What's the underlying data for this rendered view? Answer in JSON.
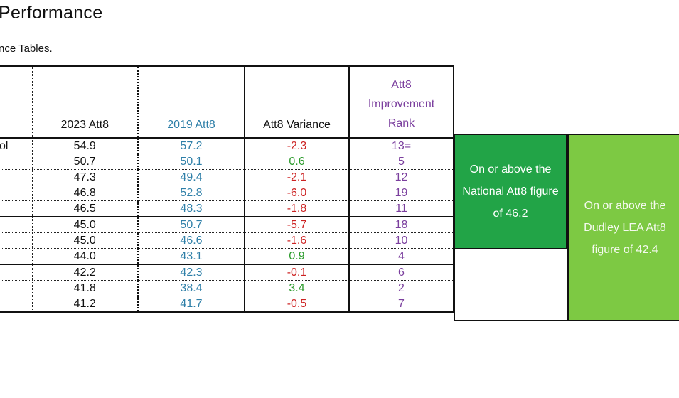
{
  "page": {
    "title": "Performance",
    "subtitle": "nce Tables."
  },
  "table": {
    "headers": {
      "name": "",
      "att8_2023": "2023 Att8",
      "att8_2019": "2019 Att8",
      "variance": "Att8 Variance",
      "rank": "Att8 Improvement Rank"
    },
    "rows": [
      {
        "name": "ol",
        "att8_2023": "54.9",
        "att8_2019": "57.2",
        "variance": "-2.3",
        "rank": "13="
      },
      {
        "name": "",
        "att8_2023": "50.7",
        "att8_2019": "50.1",
        "variance": "0.6",
        "rank": "5"
      },
      {
        "name": "",
        "att8_2023": "47.3",
        "att8_2019": "49.4",
        "variance": "-2.1",
        "rank": "12"
      },
      {
        "name": "",
        "att8_2023": "46.8",
        "att8_2019": "52.8",
        "variance": "-6.0",
        "rank": "19"
      },
      {
        "name": "",
        "att8_2023": "46.5",
        "att8_2019": "48.3",
        "variance": "-1.8",
        "rank": "11"
      },
      {
        "name": "",
        "att8_2023": "45.0",
        "att8_2019": "50.7",
        "variance": "-5.7",
        "rank": "18"
      },
      {
        "name": "",
        "att8_2023": "45.0",
        "att8_2019": "46.6",
        "variance": "-1.6",
        "rank": "10"
      },
      {
        "name": "",
        "att8_2023": "44.0",
        "att8_2019": "43.1",
        "variance": "0.9",
        "rank": "4"
      },
      {
        "name": "",
        "att8_2023": "42.2",
        "att8_2019": "42.3",
        "variance": "-0.1",
        "rank": "6"
      },
      {
        "name": "",
        "att8_2023": "41.8",
        "att8_2019": "38.4",
        "variance": "3.4",
        "rank": "2"
      },
      {
        "name": "",
        "att8_2023": "41.2",
        "att8_2019": "41.7",
        "variance": "-0.5",
        "rank": "7"
      }
    ]
  },
  "legend": {
    "national": "On or above the National Att8 figure of 46.2",
    "dudley": "On or above the Dudley LEA Att8 figure of 42.4"
  },
  "colors": {
    "national_green": "#22a447",
    "dudley_green": "#7dc943",
    "att8_2019_blue": "#2e7fa8",
    "rank_purple": "#7b3f9e",
    "negative_red": "#cc2222",
    "positive_green": "#2a9a2a"
  }
}
